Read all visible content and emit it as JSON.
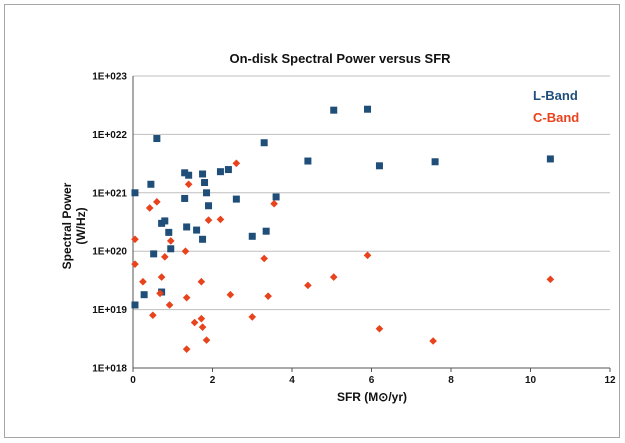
{
  "colors": {
    "background": "#ffffff",
    "frame": "#a6a6a6",
    "grid": "#bfbfbf",
    "axis": "#555555",
    "l_band": "#1f4e79",
    "c_band": "#e8431c"
  },
  "chart_data": {
    "type": "scatter",
    "title": "On-disk Spectral Power versus SFR",
    "xlabel": "SFR (M⊙/yr)",
    "ylabel_lines": [
      "Spectral Power",
      "(W/Hz)"
    ],
    "xlim": [
      0,
      12
    ],
    "ylim": [
      1e+18,
      1e+23
    ],
    "y_scale": "log",
    "grid": "horizontal",
    "legend_position": "top-right",
    "x_ticks": [
      "0",
      "2",
      "4",
      "6",
      "8",
      "10",
      "12"
    ],
    "y_ticks": [
      "1E+018",
      "1E+019",
      "1E+020",
      "1E+021",
      "1E+022",
      "1E+023"
    ],
    "series": [
      {
        "name": "L-Band",
        "marker": "square",
        "color": "#1f4e79",
        "points": [
          [
            0.05,
            1.2e+19
          ],
          [
            0.05,
            1e+21
          ],
          [
            0.28,
            1.8e+19
          ],
          [
            0.45,
            1.4e+21
          ],
          [
            0.52,
            9e+19
          ],
          [
            0.6,
            8.5e+21
          ],
          [
            0.72,
            2e+19
          ],
          [
            0.72,
            3e+20
          ],
          [
            0.8,
            3.3e+20
          ],
          [
            0.9,
            2.1e+20
          ],
          [
            0.95,
            1.1e+20
          ],
          [
            1.3,
            2.2e+21
          ],
          [
            1.3,
            8e+20
          ],
          [
            1.35,
            2.6e+20
          ],
          [
            1.4,
            2e+21
          ],
          [
            1.6,
            2.3e+20
          ],
          [
            1.75,
            2.1e+21
          ],
          [
            1.75,
            1.6e+20
          ],
          [
            1.8,
            1.5e+21
          ],
          [
            1.85,
            1e+21
          ],
          [
            1.9,
            6e+20
          ],
          [
            2.2,
            2.3e+21
          ],
          [
            2.4,
            2.5e+21
          ],
          [
            2.6,
            7.8e+20
          ],
          [
            3.0,
            1.8e+20
          ],
          [
            3.3,
            7.2e+21
          ],
          [
            3.35,
            2.2e+20
          ],
          [
            3.6,
            8.5e+20
          ],
          [
            4.4,
            3.5e+21
          ],
          [
            5.05,
            2.6e+22
          ],
          [
            5.9,
            2.7e+22
          ],
          [
            6.2,
            2.9e+21
          ],
          [
            7.6,
            3.4e+21
          ],
          [
            10.5,
            3.8e+21
          ]
        ]
      },
      {
        "name": "C-Band",
        "marker": "diamond",
        "color": "#e8431c",
        "points": [
          [
            0.05,
            1.6e+20
          ],
          [
            0.05,
            6e+19
          ],
          [
            0.25,
            3e+19
          ],
          [
            0.42,
            5.5e+20
          ],
          [
            0.5,
            8e+18
          ],
          [
            0.6,
            7e+20
          ],
          [
            0.68,
            1.9e+19
          ],
          [
            0.72,
            3.6e+19
          ],
          [
            0.8,
            8e+19
          ],
          [
            0.92,
            1.2e+19
          ],
          [
            0.95,
            1.5e+20
          ],
          [
            1.32,
            1e+20
          ],
          [
            1.35,
            2.1e+18
          ],
          [
            1.35,
            1.6e+19
          ],
          [
            1.4,
            1.4e+21
          ],
          [
            1.55,
            6e+18
          ],
          [
            1.72,
            7e+18
          ],
          [
            1.72,
            3e+19
          ],
          [
            1.75,
            5e+18
          ],
          [
            1.85,
            3e+18
          ],
          [
            1.9,
            3.4e+20
          ],
          [
            2.2,
            3.5e+20
          ],
          [
            2.45,
            1.8e+19
          ],
          [
            2.6,
            3.2e+21
          ],
          [
            3.0,
            7.5e+18
          ],
          [
            3.3,
            7.5e+19
          ],
          [
            3.4,
            1.7e+19
          ],
          [
            3.55,
            6.5e+20
          ],
          [
            4.4,
            2.6e+19
          ],
          [
            5.05,
            3.6e+19
          ],
          [
            5.9,
            8.5e+19
          ],
          [
            6.2,
            4.7e+18
          ],
          [
            7.55,
            2.9e+18
          ],
          [
            10.5,
            3.3e+19
          ]
        ]
      }
    ]
  }
}
